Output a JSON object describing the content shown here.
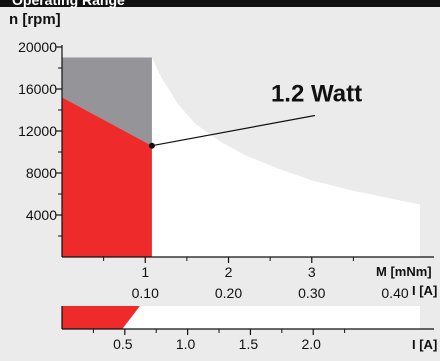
{
  "header": {
    "title": "Operating Range"
  },
  "colors": {
    "page_bg": "#ebebeb",
    "header_bg": "#111111",
    "continuous_range": "#ee2a2a",
    "short_term_range": "#949499",
    "permissible_range": "#ffffff",
    "line": "#111111"
  },
  "chart_data": [
    {
      "type": "area",
      "ylabel": "n [rpm]",
      "xlabel": "M [mNm]",
      "secondary_xlabel": "I [A]",
      "xlim": [
        0,
        4.3
      ],
      "ylim": [
        0,
        20000
      ],
      "x_ticks": [
        1,
        2,
        3
      ],
      "y_ticks": [
        4000,
        8000,
        12000,
        16000,
        20000
      ],
      "secondary_x_ticks": [
        "0.10",
        "0.20",
        "0.30",
        "0.40"
      ],
      "secondary_x_tick_values": [
        0.1,
        0.2,
        0.3,
        0.4
      ],
      "amps_per_mNm": 0.1,
      "grid": false,
      "continuous_operation": {
        "points": [
          [
            0,
            15200
          ],
          [
            1.08,
            10600
          ],
          [
            1.08,
            0
          ],
          [
            0,
            0
          ]
        ]
      },
      "short_term_operation": {
        "points": [
          [
            0,
            19000
          ],
          [
            1.08,
            19000
          ],
          [
            1.08,
            10600
          ],
          [
            0,
            15200
          ]
        ]
      },
      "power_limit": {
        "label": "1.2 Watt",
        "points": [
          [
            1.08,
            19000
          ],
          [
            1.2,
            17000
          ],
          [
            1.4,
            14500
          ],
          [
            1.6,
            12700
          ],
          [
            1.9,
            11000
          ],
          [
            2.2,
            9700
          ],
          [
            2.6,
            8400
          ],
          [
            3.0,
            7300
          ],
          [
            3.5,
            6300
          ],
          [
            4.3,
            5000
          ]
        ],
        "marker": [
          1.08,
          10600
        ],
        "label_anchor": [
          2.75,
          15000
        ]
      }
    },
    {
      "type": "bar",
      "xlabel": "I [A]",
      "xlim": [
        0,
        2.85
      ],
      "x_ticks": [
        "0.5",
        "1.0",
        "1.5",
        "2.0"
      ],
      "x_tick_values": [
        0.5,
        1.0,
        1.5,
        2.0
      ],
      "continuous_range": {
        "from": 0,
        "to": 0.48,
        "taper_to": 0.62
      }
    }
  ]
}
